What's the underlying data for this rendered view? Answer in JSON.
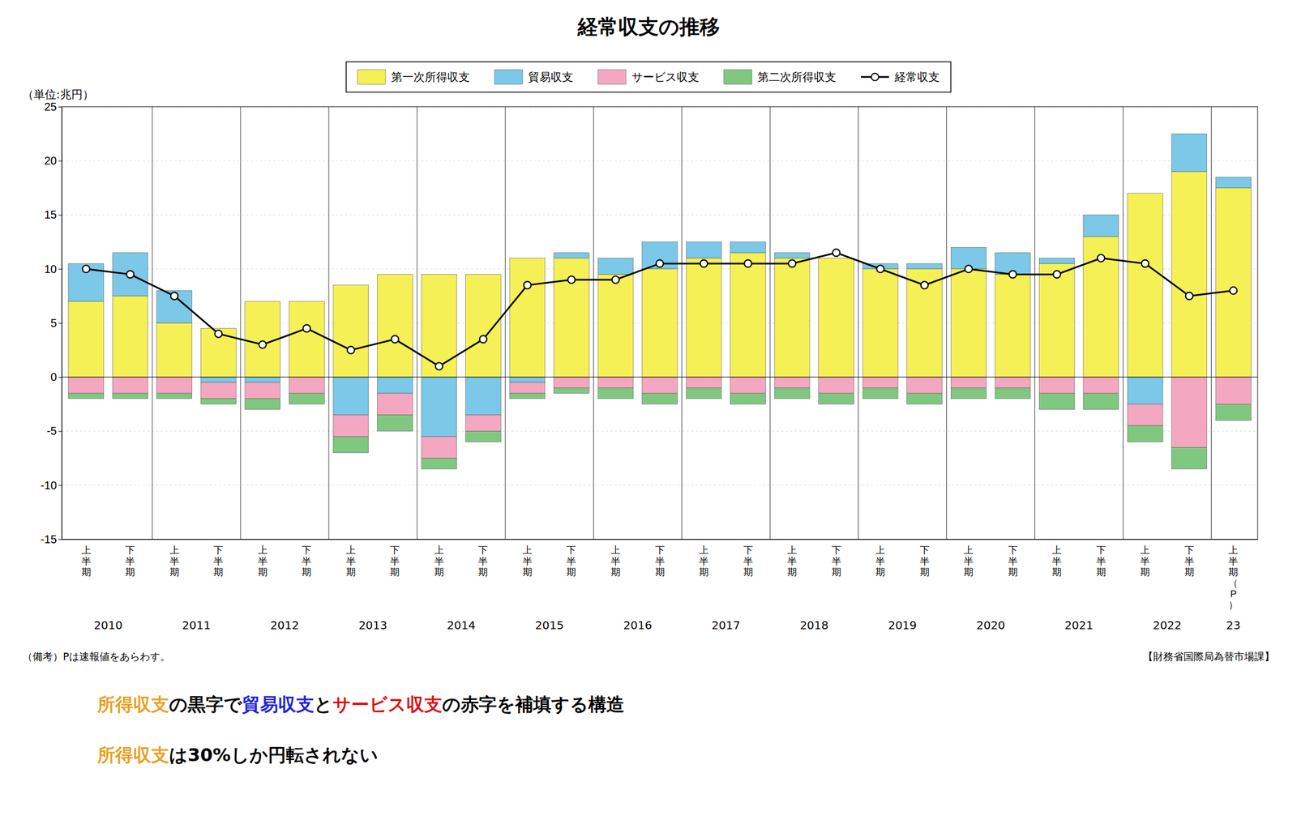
{
  "chart_data": {
    "type": "bar",
    "title": "経常収支の推移",
    "unit_label": "（単位:兆円）",
    "notes": [
      "（備考）Pは速報値をあらわす。",
      "【財務省国際局為替市場課】"
    ],
    "stacked": true,
    "grid": true,
    "legend": "top",
    "ylim": [
      -15,
      25
    ],
    "yticks": [
      -15,
      -10,
      -5,
      0,
      5,
      10,
      15,
      20,
      25
    ],
    "categories": [
      "上半期",
      "下半期",
      "上半期",
      "下半期",
      "上半期",
      "下半期",
      "上半期",
      "下半期",
      "上半期",
      "下半期",
      "上半期",
      "下半期",
      "上半期",
      "下半期",
      "上半期",
      "下半期",
      "上半期",
      "下半期",
      "上半期",
      "下半期",
      "上半期",
      "下半期",
      "上半期",
      "下半期",
      "上半期",
      "下半期",
      "上半期（P）"
    ],
    "groups": [
      {
        "label": "2010",
        "count": 2
      },
      {
        "label": "2011",
        "count": 2
      },
      {
        "label": "2012",
        "count": 2
      },
      {
        "label": "2013",
        "count": 2
      },
      {
        "label": "2014",
        "count": 2
      },
      {
        "label": "2015",
        "count": 2
      },
      {
        "label": "2016",
        "count": 2
      },
      {
        "label": "2017",
        "count": 2
      },
      {
        "label": "2018",
        "count": 2
      },
      {
        "label": "2019",
        "count": 2
      },
      {
        "label": "2020",
        "count": 2
      },
      {
        "label": "2021",
        "count": 2
      },
      {
        "label": "2022",
        "count": 2
      },
      {
        "label": "23",
        "count": 1
      }
    ],
    "series": [
      {
        "name": "第一次所得収支",
        "type": "bar",
        "color": "#F5F055",
        "values": [
          7.0,
          7.5,
          5.0,
          4.5,
          7.0,
          7.0,
          8.5,
          9.5,
          9.5,
          9.5,
          11.0,
          11.0,
          9.5,
          10.0,
          11.0,
          11.5,
          11.0,
          11.0,
          10.0,
          10.0,
          10.0,
          9.5,
          10.5,
          13.0,
          17.0,
          19.0,
          17.5
        ]
      },
      {
        "name": "貿易収支",
        "type": "bar",
        "color": "#7BC8E8",
        "values": [
          3.5,
          4.0,
          3.0,
          -0.5,
          -0.5,
          0.0,
          -3.5,
          -1.5,
          -5.5,
          -3.5,
          -0.5,
          0.5,
          1.5,
          2.5,
          1.5,
          1.0,
          0.5,
          0.0,
          0.5,
          0.5,
          2.0,
          2.0,
          0.5,
          2.0,
          -2.5,
          3.5,
          1.0
        ]
      },
      {
        "name": "サービス収支",
        "type": "bar",
        "color": "#F4A7C0",
        "values": [
          -1.5,
          -1.5,
          -1.5,
          -1.5,
          -1.5,
          -1.5,
          -2.0,
          -2.0,
          -2.0,
          -1.5,
          -1.0,
          -1.0,
          -1.0,
          -1.5,
          -1.0,
          -1.5,
          -1.0,
          -1.5,
          -1.0,
          -1.5,
          -1.0,
          -1.0,
          -1.5,
          -1.5,
          -2.0,
          -6.5,
          -2.5
        ]
      },
      {
        "name": "第二次所得収支",
        "type": "bar",
        "color": "#80C880",
        "values": [
          -0.5,
          -0.5,
          -0.5,
          -0.5,
          -1.0,
          -1.0,
          -1.5,
          -1.5,
          -1.0,
          -1.0,
          -0.5,
          -0.5,
          -1.0,
          -1.0,
          -1.0,
          -1.0,
          -1.0,
          -1.0,
          -1.0,
          -1.0,
          -1.0,
          -1.0,
          -1.5,
          -1.5,
          -1.5,
          -2.0,
          -1.5
        ]
      },
      {
        "name": "経常収支",
        "type": "line",
        "color": "#000000",
        "marker": "circle",
        "values": [
          10.0,
          9.5,
          7.5,
          4.0,
          3.0,
          4.5,
          2.5,
          3.5,
          1.0,
          3.5,
          8.5,
          9.0,
          9.0,
          10.5,
          10.5,
          10.5,
          10.5,
          11.5,
          10.0,
          8.5,
          10.0,
          9.5,
          9.5,
          11.0,
          10.5,
          7.5,
          8.0
        ]
      }
    ],
    "annotations": [
      {
        "parts": [
          {
            "text": "所得収支",
            "color": "#E8A020"
          },
          {
            "text": "の黒字で",
            "color": "#000000"
          },
          {
            "text": "貿易収支",
            "color": "#2020DD"
          },
          {
            "text": "と",
            "color": "#000000"
          },
          {
            "text": "サービス収支",
            "color": "#DD1010"
          },
          {
            "text": "の赤字を補填する構造",
            "color": "#000000"
          }
        ]
      },
      {
        "parts": [
          {
            "text": "所得収支",
            "color": "#E8A020"
          },
          {
            "text": "は30%しか円転されない",
            "color": "#000000"
          }
        ]
      }
    ]
  }
}
